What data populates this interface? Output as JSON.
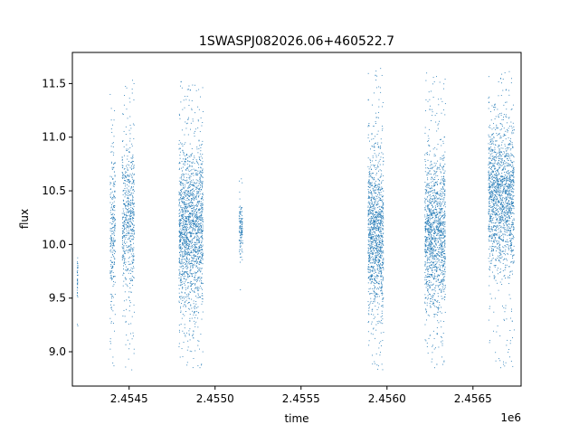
{
  "chart_data": {
    "type": "scatter",
    "title": "1SWASPJ082026.06+460522.7",
    "xlabel": "time",
    "ylabel": "flux",
    "x_offset_label": "1e6",
    "xlim": [
      2454170,
      2456780
    ],
    "ylim": [
      8.68,
      11.79
    ],
    "x_ticks": [
      2454500,
      2455000,
      2455500,
      2456000,
      2456500
    ],
    "x_tick_labels": [
      "2.4545",
      "2.4550",
      "2.4555",
      "2.4560",
      "2.4565"
    ],
    "y_ticks": [
      9.0,
      9.5,
      10.0,
      10.5,
      11.0,
      11.5
    ],
    "y_tick_labels": [
      "9.0",
      "9.5",
      "10.0",
      "10.5",
      "11.0",
      "11.5"
    ],
    "grid": false,
    "marker_color": "#1f77b4",
    "clusters": [
      {
        "x_start": 2454198,
        "x_end": 2454202,
        "y_center": 9.7,
        "y_min": 8.95,
        "y_max": 10.15,
        "n": 40
      },
      {
        "x_start": 2454390,
        "x_end": 2454420,
        "y_center": 10.15,
        "y_min": 8.8,
        "y_max": 11.45,
        "n": 260
      },
      {
        "x_start": 2454460,
        "x_end": 2454530,
        "y_center": 10.2,
        "y_min": 8.8,
        "y_max": 11.57,
        "n": 600
      },
      {
        "x_start": 2454790,
        "x_end": 2454930,
        "y_center": 10.15,
        "y_min": 8.82,
        "y_max": 11.52,
        "n": 1700
      },
      {
        "x_start": 2455140,
        "x_end": 2455160,
        "y_center": 10.15,
        "y_min": 9.52,
        "y_max": 10.62,
        "n": 120
      },
      {
        "x_start": 2455890,
        "x_end": 2455980,
        "y_center": 10.1,
        "y_min": 8.82,
        "y_max": 11.65,
        "n": 1200
      },
      {
        "x_start": 2456220,
        "x_end": 2456340,
        "y_center": 10.1,
        "y_min": 8.85,
        "y_max": 11.6,
        "n": 1400
      },
      {
        "x_start": 2456590,
        "x_end": 2456740,
        "y_center": 10.45,
        "y_min": 8.85,
        "y_max": 11.62,
        "n": 1600
      }
    ]
  }
}
